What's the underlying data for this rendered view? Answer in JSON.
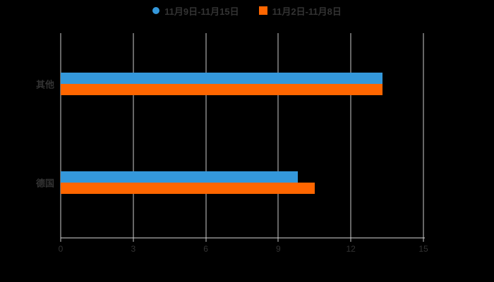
{
  "chart_data": {
    "type": "bar",
    "orientation": "horizontal",
    "title": "",
    "categories": [
      "其他",
      "德国"
    ],
    "series": [
      {
        "name": "11月9日-11月15日",
        "color": "#3498db",
        "marker": "circle",
        "values": [
          13.3,
          9.8
        ]
      },
      {
        "name": "11月2日-11月8日",
        "color": "#ff6600",
        "marker": "square",
        "values": [
          13.3,
          10.5
        ]
      }
    ],
    "xlim": [
      0,
      15
    ],
    "xticks": [
      0,
      3,
      6,
      9,
      12,
      15
    ],
    "grid": true,
    "legend_position": "top",
    "background": "#000000",
    "text_color": "#333333",
    "grid_color": "#cccccc"
  }
}
